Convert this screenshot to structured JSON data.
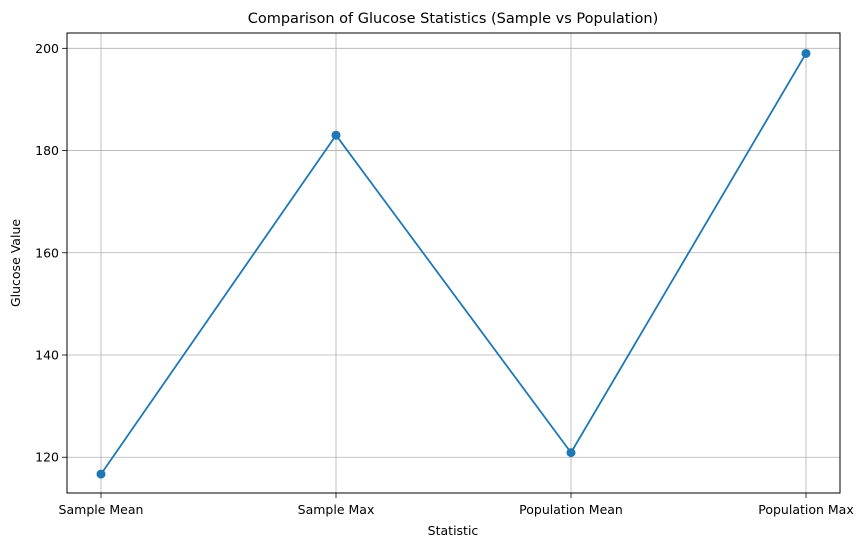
{
  "chart_data": {
    "type": "line",
    "title": "Comparison of Glucose Statistics (Sample vs Population)",
    "xlabel": "Statistic",
    "ylabel": "Glucose Value",
    "categories": [
      "Sample Mean",
      "Sample Max",
      "Population Mean",
      "Population Max"
    ],
    "series": [
      {
        "values": [
          116.7,
          183.0,
          120.9,
          199.0
        ],
        "color": "#1f77b4",
        "marker": "circle"
      }
    ],
    "ylim": [
      113,
      203
    ],
    "yticks": [
      120,
      140,
      160,
      180,
      200
    ],
    "grid": true,
    "legend": "none"
  }
}
